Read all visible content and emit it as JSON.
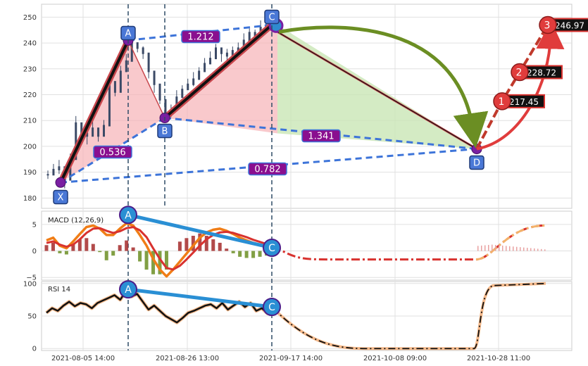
{
  "chart_data": [
    {
      "type": "candlestick",
      "panel": "price",
      "ylim": [
        176,
        255
      ],
      "yticks": [
        180,
        190,
        200,
        210,
        220,
        230,
        240,
        250
      ],
      "grid": true,
      "series": [
        {
          "name": "",
          "points": [
            [
              0,
              189
            ],
            [
              1,
              191
            ],
            [
              2,
              192
            ],
            [
              3,
              187
            ],
            [
              4,
              195
            ],
            [
              5,
              209
            ],
            [
              6,
              205
            ],
            [
              7,
              204
            ],
            [
              8,
              207
            ],
            [
              9,
              204
            ],
            [
              10,
              208
            ],
            [
              11,
              225
            ],
            [
              12,
              221
            ],
            [
              13,
              229
            ],
            [
              14,
              233
            ],
            [
              15,
              240
            ],
            [
              16,
              238
            ],
            [
              17,
              236
            ],
            [
              18,
              229
            ],
            [
              19,
              224
            ],
            [
              20,
              218
            ],
            [
              21,
              213
            ],
            [
              22,
              214
            ],
            [
              23,
              219
            ],
            [
              24,
              222
            ],
            [
              25,
              224
            ],
            [
              26,
              226
            ],
            [
              27,
              229
            ],
            [
              28,
              232
            ],
            [
              29,
              234
            ],
            [
              30,
              238
            ],
            [
              31,
              236
            ],
            [
              32,
              235
            ],
            [
              33,
              237
            ],
            [
              34,
              238
            ],
            [
              35,
              241
            ],
            [
              36,
              244
            ],
            [
              37,
              243
            ],
            [
              38,
              246
            ],
            [
              39,
              247
            ],
            [
              40,
              245
            ]
          ]
        }
      ],
      "pattern_points": [
        {
          "label": "X",
          "value": 186
        },
        {
          "label": "A",
          "value": 241
        },
        {
          "label": "B",
          "value": 211
        },
        {
          "label": "C",
          "value": 247
        },
        {
          "label": "D",
          "value": 199
        }
      ],
      "ratios": [
        "0.536",
        "1.212",
        "1.341",
        "0.782"
      ],
      "targets": [
        {
          "label": "1",
          "value": "217.45"
        },
        {
          "label": "2",
          "value": "228.72"
        },
        {
          "label": "3",
          "value": "246.97"
        }
      ]
    },
    {
      "type": "line",
      "panel": "macd",
      "title": "MACD (12,26,9)",
      "ylim": [
        -5.5,
        7.5
      ],
      "yticks": [
        -5,
        0,
        5
      ],
      "grid": true,
      "series": [
        {
          "name": "",
          "values": [
            2.0,
            2.5,
            1.0,
            0.5,
            1.8,
            3.2,
            4.5,
            4.8,
            4.2,
            3.0,
            3.0,
            4.2,
            5.2,
            4.8,
            3.0,
            1.0,
            -1.5,
            -3.5,
            -4.8,
            -3.5,
            -2.0,
            -0.5,
            1.0,
            2.5,
            3.5,
            4.0,
            4.2,
            3.8,
            3.2,
            2.5,
            2.0,
            1.5,
            1.2,
            0.9,
            0.6
          ]
        },
        {
          "name": "",
          "values": [
            1.5,
            1.8,
            1.2,
            0.8,
            1.2,
            2.2,
            3.4,
            4.2,
            4.3,
            3.8,
            3.4,
            3.7,
            4.3,
            4.5,
            3.9,
            2.6,
            0.5,
            -1.5,
            -3.2,
            -3.5,
            -2.8,
            -1.6,
            -0.3,
            1.0,
            2.2,
            3.0,
            3.5,
            3.6,
            3.4,
            3.0,
            2.6,
            2.1,
            1.7,
            1.3,
            1.0
          ]
        }
      ],
      "forecast_end": 4.8,
      "forecast_low": -1.6,
      "divergence": [
        "A",
        "C"
      ]
    },
    {
      "type": "line",
      "panel": "rsi",
      "title": "RSI 14",
      "ylim": [
        -3,
        103
      ],
      "yticks": [
        0,
        50,
        100
      ],
      "grid": true,
      "series": [
        {
          "name": "",
          "values": [
            55,
            62,
            58,
            66,
            72,
            65,
            70,
            68,
            62,
            70,
            74,
            78,
            82,
            75,
            88,
            80,
            84,
            72,
            60,
            66,
            58,
            50,
            45,
            40,
            47,
            55,
            58,
            62,
            66,
            68,
            62,
            70,
            60,
            66,
            72,
            64,
            70,
            58,
            62,
            54,
            62
          ]
        }
      ],
      "forecast_end": 100,
      "forecast_low": 0,
      "divergence": [
        "A",
        "C"
      ]
    }
  ],
  "x_axis": {
    "tick_labels": [
      "2021-08-05 14:00",
      "2021-08-26 13:00",
      "2021-09-17 14:00",
      "2021-10-08 09:00",
      "2021-10-28 11:00"
    ]
  }
}
